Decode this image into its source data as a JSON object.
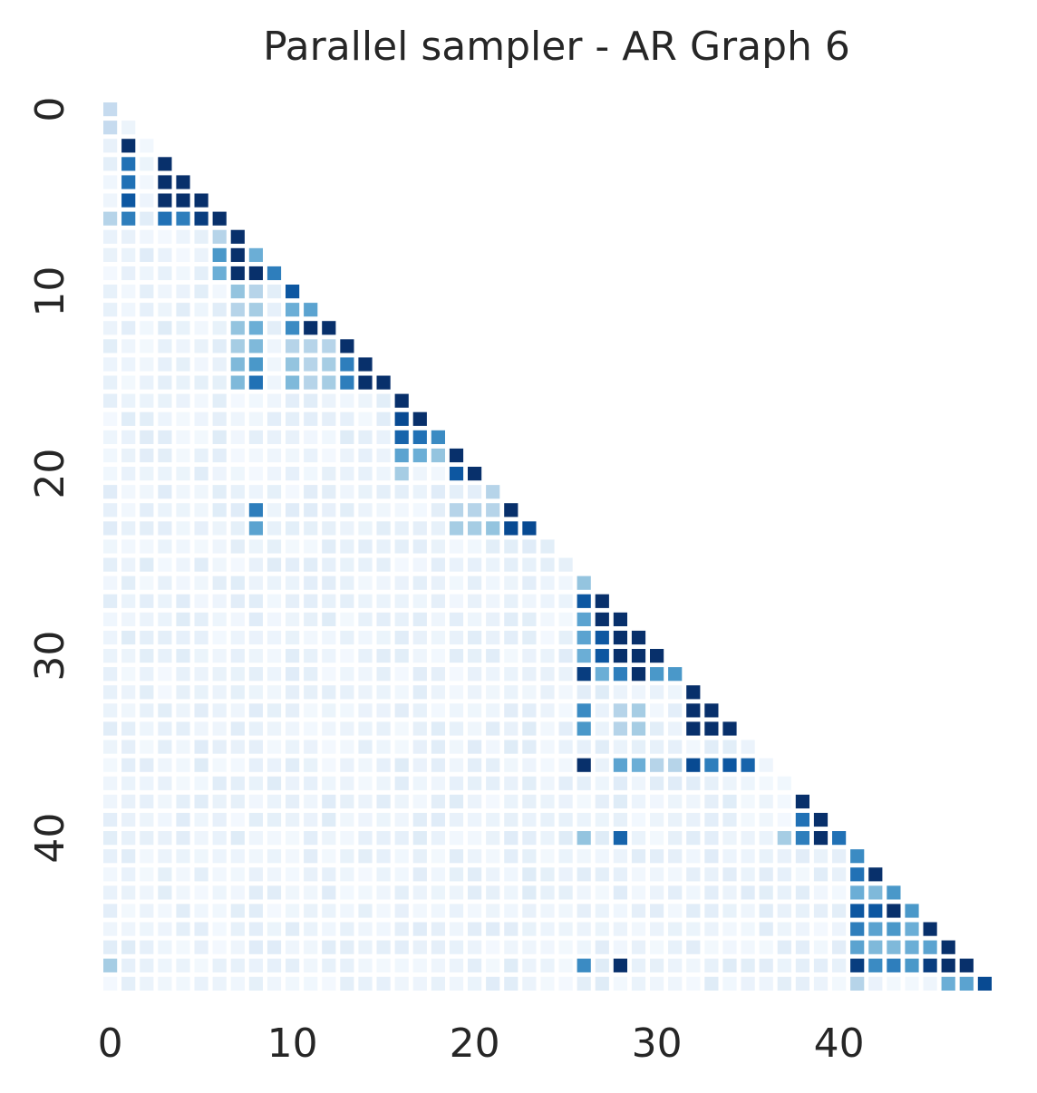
{
  "chart_data": {
    "type": "heatmap",
    "title": "Parallel sampler - AR Graph 6",
    "xlabel": "",
    "ylabel": "",
    "n": 49,
    "mask": "upper-triangle",
    "colormap": "Blues",
    "vmin": 0,
    "vmax": 1,
    "x_ticks": [
      0,
      10,
      20,
      30,
      40
    ],
    "y_ticks": [
      0,
      10,
      20,
      30,
      40
    ],
    "grid": false,
    "colorbar": false,
    "strong_entries": [
      [
        1,
        0,
        0.25
      ],
      [
        2,
        1,
        1.0
      ],
      [
        3,
        1,
        0.75
      ],
      [
        3,
        3,
        1.0
      ],
      [
        4,
        1,
        0.75
      ],
      [
        4,
        3,
        1.0
      ],
      [
        4,
        4,
        1.0
      ],
      [
        5,
        1,
        0.85
      ],
      [
        5,
        3,
        1.0
      ],
      [
        5,
        4,
        1.0
      ],
      [
        5,
        5,
        1.0
      ],
      [
        6,
        0,
        0.3
      ],
      [
        6,
        1,
        0.7
      ],
      [
        6,
        3,
        0.75
      ],
      [
        6,
        4,
        0.7
      ],
      [
        6,
        5,
        0.95
      ],
      [
        6,
        6,
        1.0
      ],
      [
        7,
        6,
        0.3
      ],
      [
        7,
        7,
        1.0
      ],
      [
        8,
        6,
        0.6
      ],
      [
        8,
        7,
        1.0
      ],
      [
        8,
        8,
        0.5
      ],
      [
        9,
        6,
        0.5
      ],
      [
        9,
        7,
        1.0
      ],
      [
        9,
        8,
        1.0
      ],
      [
        9,
        9,
        0.7
      ],
      [
        10,
        7,
        0.4
      ],
      [
        10,
        8,
        0.3
      ],
      [
        10,
        10,
        0.85
      ],
      [
        11,
        7,
        0.3
      ],
      [
        11,
        8,
        0.35
      ],
      [
        11,
        10,
        0.5
      ],
      [
        11,
        11,
        0.55
      ],
      [
        12,
        7,
        0.4
      ],
      [
        12,
        8,
        0.5
      ],
      [
        12,
        10,
        0.65
      ],
      [
        12,
        11,
        1.0
      ],
      [
        12,
        12,
        1.0
      ],
      [
        13,
        7,
        0.35
      ],
      [
        13,
        8,
        0.45
      ],
      [
        13,
        10,
        0.3
      ],
      [
        13,
        11,
        0.3
      ],
      [
        13,
        12,
        0.3
      ],
      [
        13,
        13,
        1.0
      ],
      [
        14,
        7,
        0.45
      ],
      [
        14,
        8,
        0.6
      ],
      [
        14,
        10,
        0.4
      ],
      [
        14,
        11,
        0.3
      ],
      [
        14,
        12,
        0.35
      ],
      [
        14,
        13,
        0.7
      ],
      [
        14,
        14,
        1.0
      ],
      [
        15,
        7,
        0.45
      ],
      [
        15,
        8,
        0.75
      ],
      [
        15,
        10,
        0.45
      ],
      [
        15,
        11,
        0.3
      ],
      [
        15,
        12,
        0.35
      ],
      [
        15,
        13,
        0.7
      ],
      [
        15,
        14,
        1.0
      ],
      [
        15,
        15,
        1.0
      ],
      [
        16,
        16,
        1.0
      ],
      [
        17,
        16,
        0.9
      ],
      [
        17,
        17,
        1.0
      ],
      [
        18,
        16,
        0.8
      ],
      [
        18,
        17,
        0.75
      ],
      [
        18,
        18,
        0.65
      ],
      [
        19,
        16,
        0.55
      ],
      [
        19,
        17,
        0.5
      ],
      [
        19,
        18,
        0.4
      ],
      [
        19,
        19,
        1.0
      ],
      [
        20,
        16,
        0.35
      ],
      [
        20,
        19,
        0.85
      ],
      [
        20,
        20,
        1.0
      ],
      [
        21,
        21,
        0.3
      ],
      [
        22,
        8,
        0.7
      ],
      [
        22,
        19,
        0.3
      ],
      [
        22,
        20,
        0.3
      ],
      [
        22,
        21,
        0.3
      ],
      [
        22,
        22,
        1.0
      ],
      [
        23,
        8,
        0.55
      ],
      [
        23,
        19,
        0.35
      ],
      [
        23,
        20,
        0.35
      ],
      [
        23,
        21,
        0.4
      ],
      [
        23,
        22,
        0.9
      ],
      [
        23,
        23,
        0.9
      ],
      [
        26,
        26,
        0.4
      ],
      [
        27,
        26,
        0.85
      ],
      [
        27,
        27,
        1.0
      ],
      [
        28,
        26,
        0.55
      ],
      [
        28,
        27,
        1.0
      ],
      [
        28,
        28,
        1.0
      ],
      [
        29,
        26,
        0.55
      ],
      [
        29,
        27,
        0.85
      ],
      [
        29,
        28,
        1.0
      ],
      [
        29,
        29,
        1.0
      ],
      [
        30,
        26,
        0.5
      ],
      [
        30,
        27,
        0.85
      ],
      [
        30,
        28,
        1.0
      ],
      [
        30,
        29,
        1.0
      ],
      [
        30,
        30,
        1.0
      ],
      [
        31,
        26,
        0.95
      ],
      [
        31,
        27,
        0.5
      ],
      [
        31,
        28,
        0.7
      ],
      [
        31,
        29,
        1.0
      ],
      [
        31,
        30,
        0.6
      ],
      [
        31,
        31,
        0.6
      ],
      [
        32,
        32,
        1.0
      ],
      [
        33,
        26,
        0.65
      ],
      [
        33,
        28,
        0.3
      ],
      [
        33,
        29,
        0.35
      ],
      [
        33,
        32,
        1.0
      ],
      [
        33,
        33,
        1.0
      ],
      [
        34,
        26,
        0.6
      ],
      [
        34,
        28,
        0.3
      ],
      [
        34,
        29,
        0.35
      ],
      [
        34,
        32,
        1.0
      ],
      [
        34,
        33,
        1.0
      ],
      [
        34,
        34,
        1.0
      ],
      [
        36,
        26,
        1.0
      ],
      [
        36,
        28,
        0.55
      ],
      [
        36,
        29,
        0.5
      ],
      [
        36,
        30,
        0.3
      ],
      [
        36,
        31,
        0.3
      ],
      [
        36,
        32,
        0.9
      ],
      [
        36,
        33,
        0.7
      ],
      [
        36,
        34,
        0.85
      ],
      [
        36,
        35,
        0.8
      ],
      [
        38,
        38,
        1.0
      ],
      [
        39,
        38,
        0.75
      ],
      [
        39,
        39,
        1.0
      ],
      [
        40,
        26,
        0.4
      ],
      [
        40,
        28,
        0.8
      ],
      [
        40,
        37,
        0.35
      ],
      [
        40,
        38,
        0.7
      ],
      [
        40,
        39,
        1.0
      ],
      [
        40,
        40,
        0.75
      ],
      [
        41,
        41,
        0.65
      ],
      [
        42,
        41,
        0.75
      ],
      [
        42,
        42,
        1.0
      ],
      [
        43,
        41,
        0.5
      ],
      [
        43,
        42,
        0.45
      ],
      [
        43,
        43,
        0.6
      ],
      [
        44,
        41,
        0.85
      ],
      [
        44,
        42,
        0.85
      ],
      [
        44,
        43,
        1.0
      ],
      [
        44,
        44,
        0.6
      ],
      [
        45,
        41,
        0.7
      ],
      [
        45,
        42,
        0.55
      ],
      [
        45,
        43,
        0.6
      ],
      [
        45,
        44,
        0.5
      ],
      [
        45,
        45,
        1.0
      ],
      [
        46,
        41,
        0.55
      ],
      [
        46,
        42,
        0.45
      ],
      [
        46,
        43,
        0.45
      ],
      [
        46,
        44,
        0.5
      ],
      [
        46,
        45,
        0.55
      ],
      [
        46,
        46,
        1.0
      ],
      [
        47,
        0,
        0.35
      ],
      [
        47,
        26,
        0.65
      ],
      [
        47,
        28,
        1.0
      ],
      [
        47,
        41,
        0.95
      ],
      [
        47,
        42,
        0.65
      ],
      [
        47,
        43,
        0.7
      ],
      [
        47,
        44,
        0.6
      ],
      [
        47,
        45,
        0.95
      ],
      [
        47,
        46,
        1.0
      ],
      [
        47,
        47,
        1.0
      ],
      [
        48,
        41,
        0.3
      ],
      [
        48,
        46,
        0.5
      ],
      [
        48,
        47,
        0.55
      ],
      [
        48,
        48,
        0.9
      ]
    ]
  }
}
